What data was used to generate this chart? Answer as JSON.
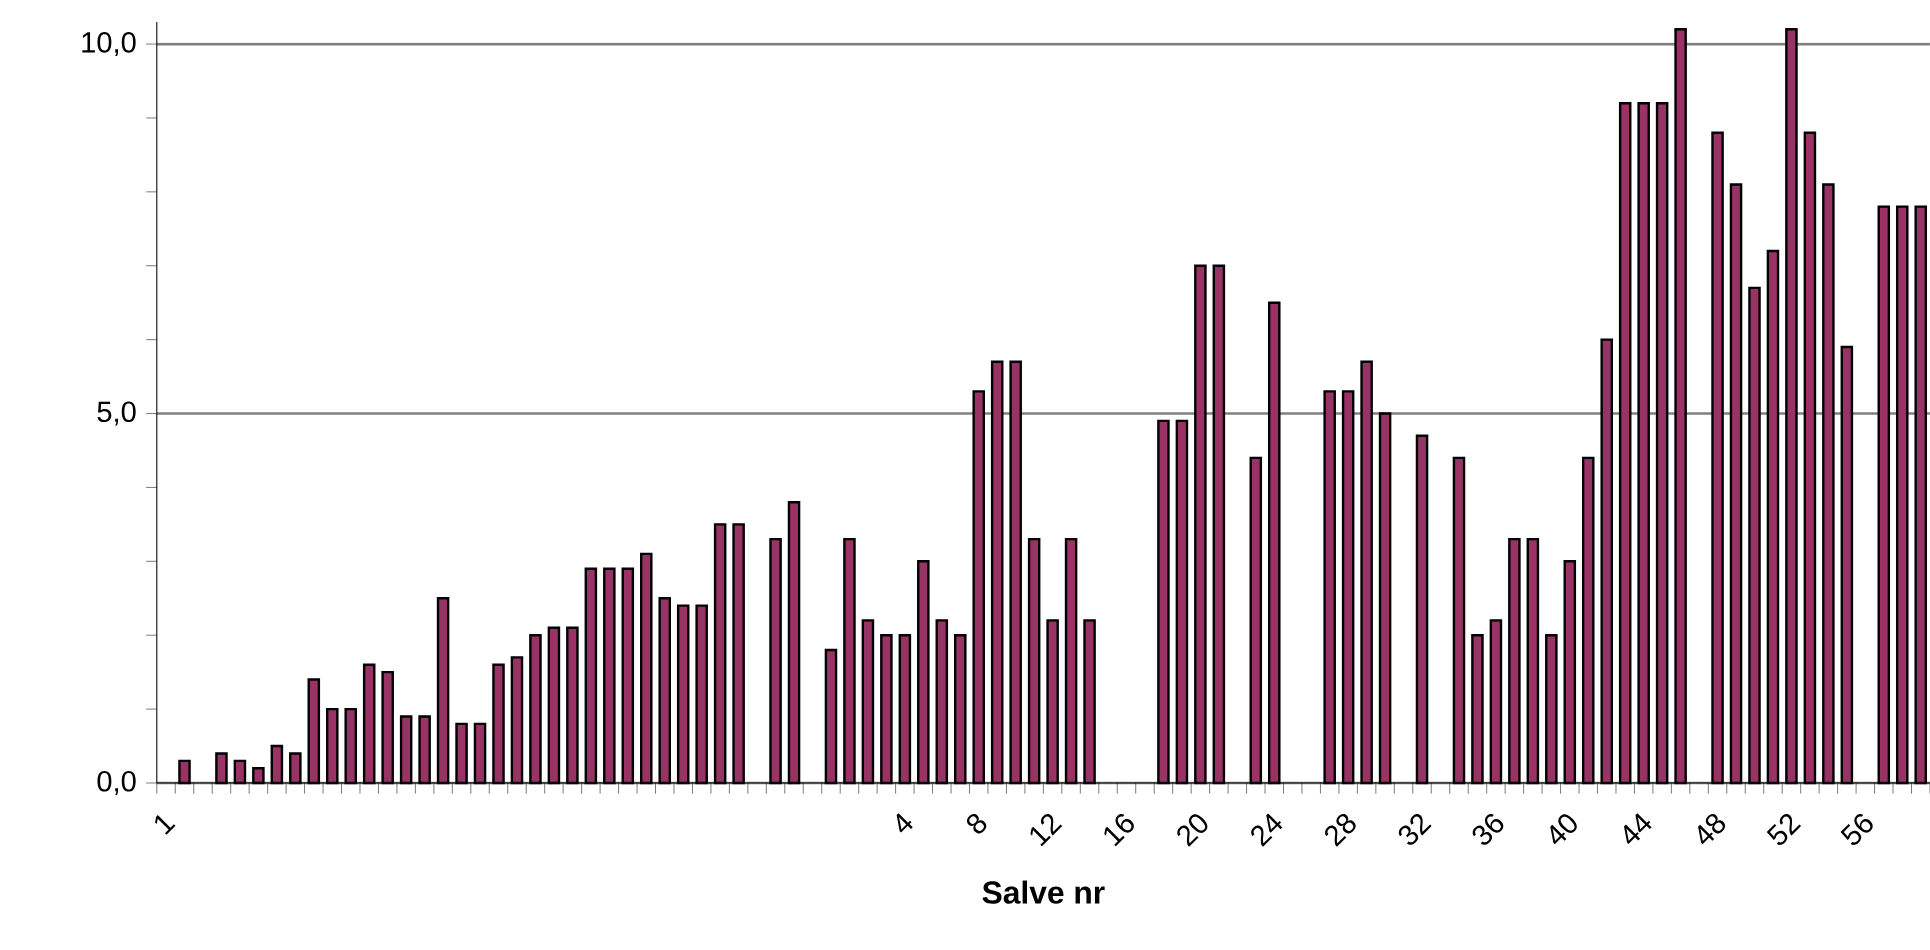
{
  "chart_data": {
    "type": "bar",
    "xlabel": "Salve nr",
    "categories": [
      "1",
      null,
      null,
      null,
      null,
      null,
      null,
      null,
      null,
      null,
      null,
      null,
      null,
      null,
      null,
      null,
      null,
      null,
      null,
      null,
      null,
      null,
      null,
      null,
      null,
      null,
      null,
      null,
      null,
      null,
      null,
      null,
      null,
      null,
      null,
      null,
      null,
      null,
      null,
      null,
      "4",
      null,
      null,
      null,
      "8",
      null,
      null,
      null,
      "12",
      null,
      null,
      null,
      "16",
      null,
      null,
      null,
      "20",
      null,
      null,
      null,
      "24",
      null,
      null,
      null,
      "28",
      null,
      null,
      null,
      "32",
      null,
      null,
      null,
      "36",
      null,
      null,
      null,
      "40",
      null,
      null,
      null,
      "44",
      null,
      null,
      null,
      "48",
      null,
      null,
      null,
      "52",
      null,
      null,
      null,
      "56",
      null,
      null,
      null
    ],
    "values": [
      null,
      0.3,
      null,
      0.4,
      0.3,
      0.2,
      0.5,
      0.4,
      1.4,
      1.0,
      1.0,
      1.6,
      1.5,
      0.9,
      0.9,
      2.5,
      0.8,
      0.8,
      1.6,
      1.7,
      2.0,
      2.1,
      2.1,
      2.9,
      2.9,
      2.9,
      3.1,
      2.5,
      2.4,
      2.4,
      3.5,
      3.5,
      null,
      3.3,
      3.8,
      null,
      1.8,
      3.3,
      2.2,
      2.0,
      2.0,
      3.0,
      2.2,
      2.0,
      5.3,
      5.7,
      5.7,
      3.3,
      2.2,
      3.3,
      2.2,
      null,
      null,
      null,
      4.9,
      4.9,
      7.0,
      7.0,
      null,
      4.4,
      6.5,
      null,
      null,
      5.3,
      5.3,
      5.7,
      5.0,
      null,
      4.7,
      null,
      4.4,
      2.0,
      2.2,
      3.3,
      3.3,
      2.0,
      3.0,
      4.4,
      6.0,
      9.2,
      9.2,
      9.2,
      10.2,
      null,
      8.8,
      8.1,
      6.7,
      7.2,
      10.2,
      8.8,
      8.1,
      5.9,
      null,
      7.8,
      7.8,
      7.8
    ],
    "color": "#993366",
    "ylim": [
      0,
      10.3
    ],
    "yticks": [
      {
        "value": 0,
        "label": "0,0"
      },
      {
        "value": 5,
        "label": "5,0"
      },
      {
        "value": 10,
        "label": "10,0"
      }
    ],
    "grid": "y"
  }
}
